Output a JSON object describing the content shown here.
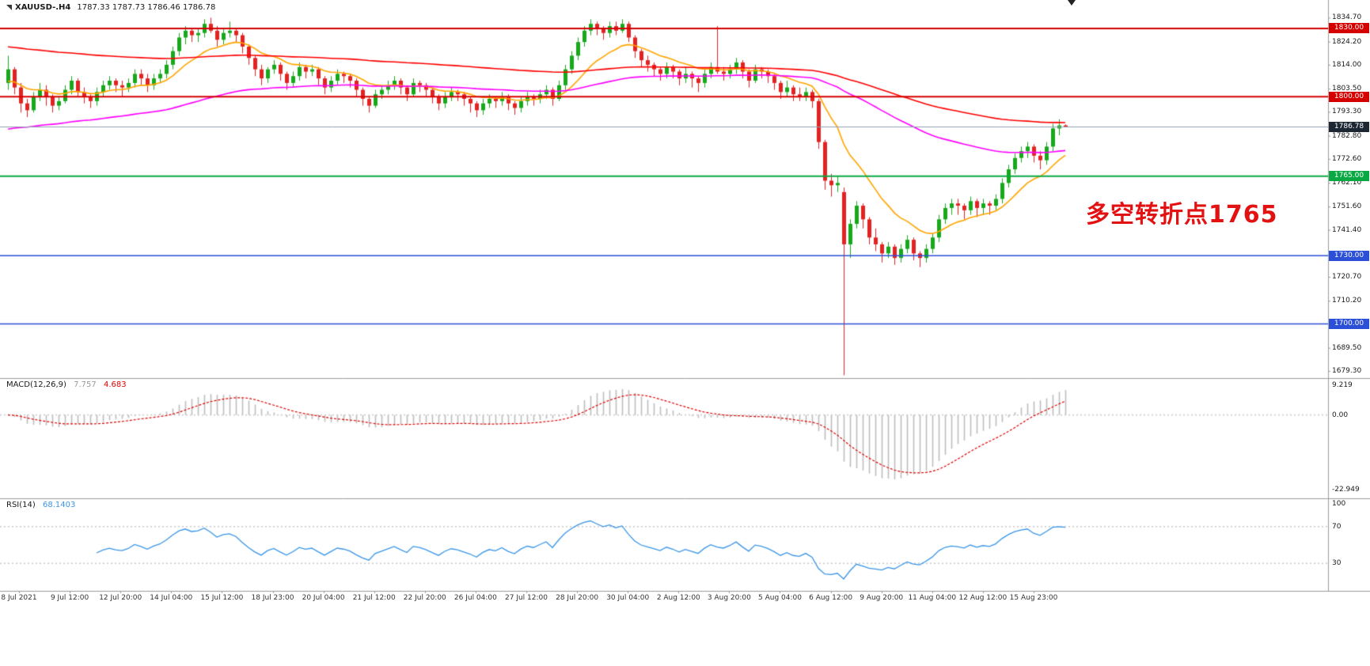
{
  "window": {
    "title": "XAUUSD-.H4 chart",
    "bg": "#ffffff"
  },
  "header": {
    "symbol_period": "XAUUSD-.H4",
    "ohlc": "1787.33 1787.73 1786.46 1786.78"
  },
  "annotation": {
    "text": "多空转折点1765",
    "color": "#e31212"
  },
  "current_price": {
    "value": "1786.78",
    "line_color": "#8fa0b2",
    "box_bg": "#1c2733"
  },
  "hlines": [
    {
      "label": "1830.00",
      "value": 1830.0,
      "color": "#d40000",
      "width": 2
    },
    {
      "label": "1800.00",
      "value": 1800.0,
      "color": "#d40000",
      "width": 2
    },
    {
      "label": "1765.00",
      "value": 1765.0,
      "color": "#0aa843",
      "width": 2
    },
    {
      "label": "1730.00",
      "value": 1730.0,
      "color": "#2c4fd8",
      "width": 1.5
    },
    {
      "label": "1700.00",
      "value": 1700.0,
      "color": "#2c4fd8",
      "width": 1.5
    }
  ],
  "price_axis": {
    "labels": [
      "1834.70",
      "1824.20",
      "1814.00",
      "1803.50",
      "1793.30",
      "1782.80",
      "1772.60",
      "1762.10",
      "1751.60",
      "1741.40",
      "1720.70",
      "1710.20",
      "1689.50",
      "1679.30"
    ]
  },
  "macd_panel": {
    "title": "MACD(12,26,9)",
    "value1": "7.757",
    "value2": "4.683",
    "axis_labels": [
      "9.219",
      "0.00",
      "-22.949"
    ],
    "hist_color": "#bdbdbd",
    "signal_color": "#e00000"
  },
  "rsi_panel": {
    "title": "RSI(14)",
    "value": "68.1403",
    "axis_labels": [
      "100",
      "70",
      "30"
    ],
    "levels": [
      70,
      30
    ],
    "line_color": "#3a96e8",
    "level_color": "#c9c9c9"
  },
  "time_axis": {
    "labels": [
      "8 Jul 2021",
      "9 Jul 12:00",
      "12 Jul 20:00",
      "14 Jul 04:00",
      "15 Jul 12:00",
      "18 Jul 23:00",
      "20 Jul 04:00",
      "21 Jul 12:00",
      "22 Jul 20:00",
      "26 Jul 04:00",
      "27 Jul 12:00",
      "28 Jul 20:00",
      "30 Jul 04:00",
      "2 Aug 12:00",
      "3 Aug 20:00",
      "5 Aug 04:00",
      "6 Aug 12:00",
      "9 Aug 20:00",
      "11 Aug 04:00",
      "12 Aug 12:00",
      "15 Aug 23:00"
    ]
  },
  "chart_data": {
    "type": "candlestick",
    "symbol": "XAUUSD-",
    "timeframe": "H4",
    "title": "XAUUSD-.H4",
    "ylim": [
      1675,
      1842
    ],
    "x_range": [
      "8 Jul 2021",
      "16 Aug 2021"
    ],
    "up_color": "#17a81b",
    "down_color": "#e32222",
    "legend_position": "none",
    "grid": false,
    "ohlc": [
      [
        1806,
        1818,
        1803,
        1812
      ],
      [
        1812,
        1813,
        1801,
        1804
      ],
      [
        1804,
        1806,
        1793,
        1797
      ],
      [
        1797,
        1799,
        1791,
        1794
      ],
      [
        1794,
        1802,
        1793,
        1800
      ],
      [
        1800,
        1806,
        1798,
        1803
      ],
      [
        1803,
        1805,
        1796,
        1800
      ],
      [
        1800,
        1801,
        1793,
        1796
      ],
      [
        1796,
        1800,
        1794,
        1798
      ],
      [
        1798,
        1805,
        1797,
        1803
      ],
      [
        1803,
        1809,
        1801,
        1807
      ],
      [
        1807,
        1808,
        1800,
        1802
      ],
      [
        1802,
        1804,
        1797,
        1800
      ],
      [
        1800,
        1801,
        1795,
        1798
      ],
      [
        1798,
        1804,
        1796,
        1802
      ],
      [
        1802,
        1807,
        1800,
        1805
      ],
      [
        1805,
        1809,
        1803,
        1807
      ],
      [
        1807,
        1808,
        1802,
        1805
      ],
      [
        1805,
        1807,
        1800,
        1804
      ],
      [
        1804,
        1808,
        1802,
        1806
      ],
      [
        1806,
        1812,
        1804,
        1810
      ],
      [
        1810,
        1812,
        1805,
        1808
      ],
      [
        1808,
        1810,
        1802,
        1805
      ],
      [
        1805,
        1810,
        1803,
        1808
      ],
      [
        1808,
        1812,
        1806,
        1810
      ],
      [
        1810,
        1816,
        1808,
        1814
      ],
      [
        1814,
        1822,
        1812,
        1820
      ],
      [
        1820,
        1828,
        1818,
        1826
      ],
      [
        1826,
        1831,
        1823,
        1829
      ],
      [
        1829,
        1830,
        1824,
        1827
      ],
      [
        1827,
        1830,
        1824,
        1828
      ],
      [
        1828,
        1834,
        1826,
        1832
      ],
      [
        1832,
        1834.7,
        1828,
        1829
      ],
      [
        1829,
        1831,
        1822,
        1825
      ],
      [
        1825,
        1830,
        1823,
        1828
      ],
      [
        1828,
        1833,
        1826,
        1829
      ],
      [
        1829,
        1830,
        1824,
        1827
      ],
      [
        1827,
        1828,
        1819,
        1822
      ],
      [
        1822,
        1823,
        1814,
        1817
      ],
      [
        1817,
        1818,
        1809,
        1812
      ],
      [
        1812,
        1814,
        1805,
        1808
      ],
      [
        1808,
        1813,
        1806,
        1812
      ],
      [
        1812,
        1816,
        1810,
        1814
      ],
      [
        1814,
        1815,
        1807,
        1810
      ],
      [
        1810,
        1811,
        1803,
        1806
      ],
      [
        1806,
        1811,
        1804,
        1809
      ],
      [
        1809,
        1815,
        1807,
        1813
      ],
      [
        1813,
        1814,
        1808,
        1811
      ],
      [
        1811,
        1814,
        1809,
        1812
      ],
      [
        1812,
        1813,
        1805,
        1808
      ],
      [
        1808,
        1809,
        1801,
        1804
      ],
      [
        1804,
        1809,
        1802,
        1807
      ],
      [
        1807,
        1812,
        1805,
        1810
      ],
      [
        1810,
        1811,
        1806,
        1809
      ],
      [
        1809,
        1810,
        1804,
        1807
      ],
      [
        1807,
        1808,
        1800,
        1803
      ],
      [
        1803,
        1804,
        1796,
        1799
      ],
      [
        1799,
        1800,
        1793,
        1796
      ],
      [
        1796,
        1803,
        1795,
        1801
      ],
      [
        1801,
        1805,
        1799,
        1803
      ],
      [
        1803,
        1807,
        1801,
        1805
      ],
      [
        1805,
        1809,
        1803,
        1807
      ],
      [
        1807,
        1808,
        1801,
        1804
      ],
      [
        1804,
        1805,
        1798,
        1801
      ],
      [
        1801,
        1808,
        1800,
        1806
      ],
      [
        1806,
        1807,
        1802,
        1805
      ],
      [
        1805,
        1806,
        1800,
        1803
      ],
      [
        1803,
        1804,
        1797,
        1800
      ],
      [
        1800,
        1801,
        1794,
        1797
      ],
      [
        1797,
        1802,
        1795,
        1800
      ],
      [
        1800,
        1804,
        1798,
        1802
      ],
      [
        1802,
        1803,
        1798,
        1801
      ],
      [
        1801,
        1802,
        1796,
        1799
      ],
      [
        1799,
        1800,
        1793,
        1797
      ],
      [
        1797,
        1798,
        1791,
        1794
      ],
      [
        1794,
        1799,
        1792,
        1797
      ],
      [
        1797,
        1801,
        1795,
        1799
      ],
      [
        1799,
        1800,
        1795,
        1798
      ],
      [
        1798,
        1802,
        1796,
        1800
      ],
      [
        1800,
        1801,
        1794,
        1797
      ],
      [
        1797,
        1798,
        1792,
        1795
      ],
      [
        1795,
        1800,
        1793,
        1798
      ],
      [
        1798,
        1802,
        1796,
        1800
      ],
      [
        1800,
        1801,
        1796,
        1799
      ],
      [
        1799,
        1803,
        1797,
        1801
      ],
      [
        1801,
        1805,
        1799,
        1803
      ],
      [
        1803,
        1804,
        1796,
        1799
      ],
      [
        1799,
        1807,
        1798,
        1805
      ],
      [
        1805,
        1814,
        1803,
        1812
      ],
      [
        1812,
        1820,
        1810,
        1818
      ],
      [
        1818,
        1826,
        1816,
        1824
      ],
      [
        1824,
        1831,
        1822,
        1829
      ],
      [
        1829,
        1834,
        1827,
        1832
      ],
      [
        1832,
        1833,
        1827,
        1830
      ],
      [
        1830,
        1831,
        1825,
        1828
      ],
      [
        1828,
        1833,
        1826,
        1831
      ],
      [
        1831,
        1833,
        1827,
        1829
      ],
      [
        1829,
        1834,
        1828,
        1832
      ],
      [
        1832,
        1833,
        1824,
        1826
      ],
      [
        1826,
        1827,
        1817,
        1820
      ],
      [
        1820,
        1821,
        1813,
        1816
      ],
      [
        1816,
        1818,
        1811,
        1814
      ],
      [
        1814,
        1815,
        1809,
        1812
      ],
      [
        1812,
        1813,
        1807,
        1810
      ],
      [
        1810,
        1815,
        1808,
        1813
      ],
      [
        1813,
        1814,
        1808,
        1811
      ],
      [
        1811,
        1812,
        1805,
        1808
      ],
      [
        1808,
        1813,
        1806,
        1810
      ],
      [
        1810,
        1811,
        1804,
        1808
      ],
      [
        1808,
        1809,
        1802,
        1806
      ],
      [
        1806,
        1812,
        1804,
        1810
      ],
      [
        1810,
        1815,
        1808,
        1813
      ],
      [
        1813,
        1831,
        1810,
        1811
      ],
      [
        1811,
        1813,
        1807,
        1810
      ],
      [
        1810,
        1814,
        1808,
        1812
      ],
      [
        1812,
        1817,
        1810,
        1815
      ],
      [
        1815,
        1816,
        1808,
        1811
      ],
      [
        1811,
        1812,
        1804,
        1807
      ],
      [
        1807,
        1814,
        1806,
        1812
      ],
      [
        1812,
        1813,
        1808,
        1811
      ],
      [
        1811,
        1812,
        1806,
        1809
      ],
      [
        1809,
        1810,
        1803,
        1806
      ],
      [
        1806,
        1807,
        1799,
        1802
      ],
      [
        1802,
        1807,
        1800,
        1804
      ],
      [
        1804,
        1805,
        1798,
        1801
      ],
      [
        1801,
        1804,
        1798,
        1800
      ],
      [
        1800,
        1804,
        1798,
        1802
      ],
      [
        1802,
        1803,
        1795,
        1798
      ],
      [
        1798,
        1799,
        1777,
        1780
      ],
      [
        1780,
        1781,
        1759,
        1763
      ],
      [
        1763,
        1766,
        1756,
        1761
      ],
      [
        1761,
        1765,
        1758,
        1762
      ],
      [
        1758,
        1760,
        1677.4,
        1735
      ],
      [
        1735,
        1746,
        1729,
        1744
      ],
      [
        1744,
        1754,
        1742,
        1752
      ],
      [
        1752,
        1753,
        1742,
        1746
      ],
      [
        1746,
        1747,
        1735,
        1738
      ],
      [
        1738,
        1742,
        1732,
        1735
      ],
      [
        1735,
        1736,
        1727,
        1731
      ],
      [
        1731,
        1736,
        1729,
        1734
      ],
      [
        1734,
        1735,
        1726,
        1729
      ],
      [
        1729,
        1735,
        1727,
        1733
      ],
      [
        1733,
        1739,
        1731,
        1737
      ],
      [
        1737,
        1738,
        1728,
        1731
      ],
      [
        1731,
        1732,
        1725,
        1729
      ],
      [
        1729,
        1735,
        1727,
        1733
      ],
      [
        1733,
        1740,
        1731,
        1738
      ],
      [
        1738,
        1748,
        1736,
        1746
      ],
      [
        1746,
        1753,
        1744,
        1751
      ],
      [
        1751,
        1755,
        1748,
        1753
      ],
      [
        1753,
        1755,
        1748,
        1752
      ],
      [
        1752,
        1753,
        1746,
        1750
      ],
      [
        1750,
        1756,
        1748,
        1754
      ],
      [
        1754,
        1755,
        1747,
        1751
      ],
      [
        1751,
        1755,
        1748,
        1753
      ],
      [
        1753,
        1754,
        1748,
        1752
      ],
      [
        1752,
        1757,
        1750,
        1755
      ],
      [
        1755,
        1764,
        1753,
        1762
      ],
      [
        1762,
        1770,
        1760,
        1768
      ],
      [
        1768,
        1775,
        1766,
        1773
      ],
      [
        1773,
        1778,
        1771,
        1776
      ],
      [
        1776,
        1780,
        1773,
        1778
      ],
      [
        1778,
        1779,
        1771,
        1774
      ],
      [
        1774,
        1776,
        1768,
        1772
      ],
      [
        1772,
        1780,
        1770,
        1778
      ],
      [
        1778,
        1788,
        1776,
        1786
      ],
      [
        1786,
        1790,
        1783,
        1787.3
      ],
      [
        1787.33,
        1787.73,
        1786.46,
        1786.78
      ]
    ],
    "ma_overlays": [
      {
        "name": "fast-ma",
        "period": 13,
        "color": "#ffa500",
        "seed": 1806
      },
      {
        "name": "mid-ma",
        "period": 80,
        "color": "#ff00ff",
        "seed": 1785
      },
      {
        "name": "slow-ma",
        "period": 150,
        "color": "#ff0000",
        "seed": 1822
      }
    ],
    "indicators": {
      "macd": {
        "fast": 12,
        "slow": 26,
        "signal": 9,
        "current_macd": 7.757,
        "current_signal": 4.683
      },
      "rsi": {
        "period": 14,
        "current": 68.1403,
        "levels": [
          70,
          30
        ]
      }
    }
  }
}
